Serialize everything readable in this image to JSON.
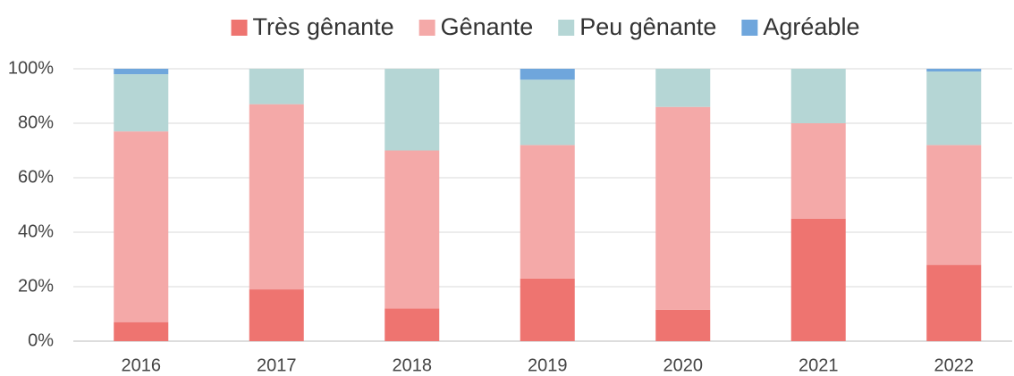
{
  "chart_data": {
    "type": "stacked_bar",
    "categories": [
      "2016",
      "2017",
      "2018",
      "2019",
      "2020",
      "2021",
      "2022"
    ],
    "series": [
      {
        "name": "Très gênante",
        "color": "#ee7470",
        "values": [
          7,
          19,
          12,
          23,
          11.5,
          45,
          28
        ]
      },
      {
        "name": "Gênante",
        "color": "#f4a9a8",
        "values": [
          70,
          68,
          58,
          49,
          74.5,
          35,
          44
        ]
      },
      {
        "name": "Peu gênante",
        "color": "#b5d6d5",
        "values": [
          21,
          13,
          30,
          24,
          14,
          20,
          27
        ]
      },
      {
        "name": "Agréable",
        "color": "#6fa6dc",
        "values": [
          2,
          0,
          0,
          4,
          0,
          0,
          1
        ]
      }
    ],
    "ylim": [
      0,
      100
    ],
    "yticks": [
      {
        "value": 0,
        "label": "0%"
      },
      {
        "value": 20,
        "label": "20%"
      },
      {
        "value": 40,
        "label": "40%"
      },
      {
        "value": 60,
        "label": "60%"
      },
      {
        "value": 80,
        "label": "80%"
      },
      {
        "value": 100,
        "label": "100%"
      }
    ],
    "grid": true,
    "legend": "top"
  }
}
